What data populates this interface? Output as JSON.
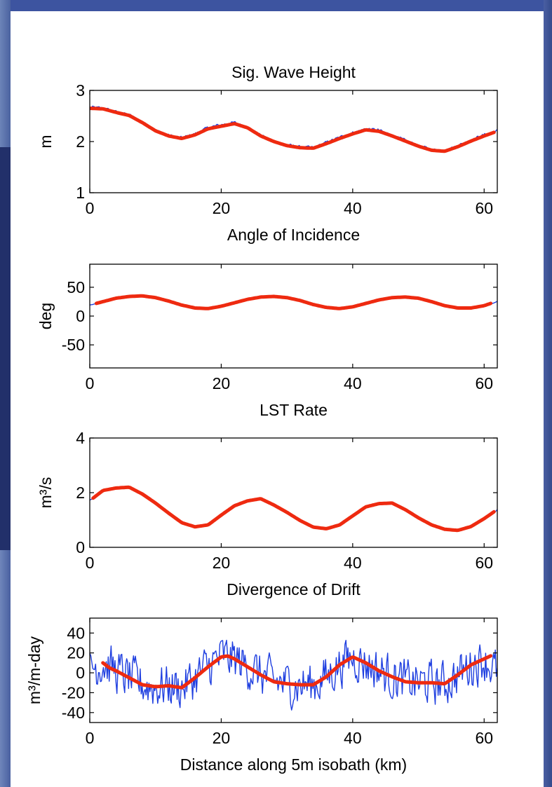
{
  "colors": {
    "raw": "#1f3fe0",
    "smoothed": "#ee2a10",
    "axis": "#000000"
  },
  "chart_data": [
    {
      "type": "line",
      "title": "Sig. Wave Height",
      "xlabel": "Angle of Incidence",
      "ylabel": "m",
      "xlim": [
        0,
        62
      ],
      "ylim": [
        1,
        3
      ],
      "xticks": [
        0,
        20,
        40,
        60
      ],
      "yticks": [
        1,
        2,
        3
      ],
      "ytick_labels": [
        "1",
        "2",
        "3"
      ],
      "series": [
        {
          "role": "raw",
          "color": "#1f3fe0",
          "noise": 0.03,
          "x": [
            0,
            2,
            4,
            6,
            8,
            10,
            12,
            14,
            16,
            18,
            20,
            22,
            24,
            26,
            28,
            30,
            32,
            34,
            36,
            38,
            40,
            42,
            44,
            46,
            48,
            50,
            52,
            54,
            56,
            58,
            60,
            62
          ],
          "y": [
            2.67,
            2.65,
            2.58,
            2.52,
            2.38,
            2.22,
            2.12,
            2.07,
            2.15,
            2.27,
            2.33,
            2.37,
            2.28,
            2.12,
            2.01,
            1.93,
            1.89,
            1.88,
            1.98,
            2.08,
            2.17,
            2.25,
            2.22,
            2.12,
            2.02,
            1.92,
            1.84,
            1.82,
            1.92,
            2.03,
            2.13,
            2.21
          ]
        },
        {
          "role": "smoothed",
          "color": "#ee2a10",
          "x": [
            0,
            2,
            4,
            6,
            8,
            10,
            12,
            14,
            16,
            18,
            20,
            22,
            24,
            26,
            28,
            30,
            32,
            34,
            36,
            38,
            40,
            42,
            44,
            46,
            48,
            50,
            52,
            54,
            56,
            58,
            60,
            61.5
          ],
          "y": [
            2.65,
            2.64,
            2.57,
            2.51,
            2.37,
            2.21,
            2.11,
            2.06,
            2.13,
            2.25,
            2.3,
            2.35,
            2.27,
            2.11,
            2.0,
            1.92,
            1.88,
            1.87,
            1.96,
            2.06,
            2.15,
            2.23,
            2.2,
            2.11,
            2.01,
            1.91,
            1.83,
            1.81,
            1.9,
            2.01,
            2.11,
            2.18
          ]
        }
      ]
    },
    {
      "type": "line",
      "title": "",
      "xlabel": "LST Rate",
      "ylabel": "deg",
      "xlim": [
        0,
        62
      ],
      "ylim": [
        -90,
        90
      ],
      "xticks": [
        0,
        20,
        40,
        60
      ],
      "yticks": [
        -50,
        0,
        50
      ],
      "ytick_labels": [
        "-50",
        "0",
        "50"
      ],
      "series": [
        {
          "role": "raw",
          "color": "#1f3fe0",
          "noise": 0.5,
          "x": [
            0,
            2,
            4,
            6,
            8,
            10,
            12,
            14,
            16,
            18,
            20,
            22,
            24,
            26,
            28,
            30,
            32,
            34,
            36,
            38,
            40,
            42,
            44,
            46,
            48,
            50,
            52,
            54,
            56,
            58,
            60,
            62
          ],
          "y": [
            19,
            25,
            31,
            34,
            35,
            32,
            26,
            19,
            14,
            13,
            17,
            23,
            29,
            33,
            34,
            32,
            27,
            20,
            15,
            13,
            16,
            22,
            28,
            32,
            33,
            31,
            25,
            18,
            14,
            14,
            18,
            25
          ]
        },
        {
          "role": "smoothed",
          "color": "#ee2a10",
          "x": [
            1,
            2,
            4,
            6,
            8,
            10,
            12,
            14,
            16,
            18,
            20,
            22,
            24,
            26,
            28,
            30,
            32,
            34,
            36,
            38,
            40,
            42,
            44,
            46,
            48,
            50,
            52,
            54,
            56,
            58,
            60,
            61
          ],
          "y": [
            22,
            25,
            31,
            34,
            35,
            32,
            26,
            19,
            14,
            13,
            17,
            23,
            29,
            33,
            34,
            32,
            27,
            20,
            15,
            13,
            16,
            22,
            28,
            32,
            33,
            31,
            25,
            18,
            14,
            14,
            18,
            22
          ]
        }
      ]
    },
    {
      "type": "line",
      "title": "",
      "xlabel": "Divergence of Drift",
      "ylabel": "m³/s",
      "xlim": [
        0,
        62
      ],
      "ylim": [
        0,
        4
      ],
      "xticks": [
        0,
        20,
        40,
        60
      ],
      "yticks": [
        0,
        2,
        4
      ],
      "ytick_labels": [
        "0",
        "2",
        "4"
      ],
      "series": [
        {
          "role": "raw",
          "color": "#1f3fe0",
          "noise": 0.02,
          "x": [
            0,
            2,
            4,
            6,
            8,
            10,
            12,
            14,
            16,
            18,
            20,
            22,
            24,
            26,
            28,
            30,
            32,
            34,
            36,
            38,
            40,
            42,
            44,
            46,
            48,
            50,
            52,
            54,
            56,
            58,
            60,
            62
          ],
          "y": [
            1.72,
            2.08,
            2.17,
            2.2,
            1.95,
            1.62,
            1.25,
            0.9,
            0.75,
            0.82,
            1.18,
            1.52,
            1.7,
            1.78,
            1.55,
            1.28,
            0.98,
            0.74,
            0.68,
            0.82,
            1.15,
            1.48,
            1.6,
            1.62,
            1.38,
            1.08,
            0.82,
            0.66,
            0.62,
            0.76,
            1.05,
            1.38
          ]
        },
        {
          "role": "smoothed",
          "color": "#ee2a10",
          "x": [
            0.5,
            2,
            4,
            6,
            8,
            10,
            12,
            14,
            16,
            18,
            20,
            22,
            24,
            26,
            28,
            30,
            32,
            34,
            36,
            38,
            40,
            42,
            44,
            46,
            48,
            50,
            52,
            54,
            56,
            58,
            60,
            61.5
          ],
          "y": [
            1.8,
            2.08,
            2.17,
            2.2,
            1.95,
            1.62,
            1.25,
            0.9,
            0.75,
            0.82,
            1.18,
            1.52,
            1.7,
            1.78,
            1.55,
            1.28,
            0.98,
            0.74,
            0.68,
            0.82,
            1.15,
            1.48,
            1.6,
            1.62,
            1.38,
            1.08,
            0.82,
            0.66,
            0.62,
            0.76,
            1.05,
            1.3
          ]
        }
      ]
    },
    {
      "type": "line",
      "title": "",
      "xlabel": "Distance along 5m isobath (km)",
      "ylabel": "m³/m-day",
      "xlim": [
        0,
        62
      ],
      "ylim": [
        -50,
        55
      ],
      "xticks": [
        0,
        20,
        40,
        60
      ],
      "yticks": [
        -40,
        -20,
        0,
        20,
        40
      ],
      "ytick_labels": [
        "-40",
        "-20",
        "0",
        "20",
        "40"
      ],
      "series": [
        {
          "role": "raw",
          "color": "#1f3fe0",
          "noise": 22,
          "x": [
            0,
            2,
            4,
            6,
            8,
            10,
            12,
            14,
            16,
            18,
            20,
            22,
            24,
            26,
            28,
            30,
            32,
            34,
            36,
            38,
            40,
            42,
            44,
            46,
            48,
            50,
            52,
            54,
            56,
            58,
            60,
            62
          ],
          "y": [
            5,
            10,
            2,
            -5,
            -12,
            -14,
            -13,
            -15,
            -5,
            6,
            16,
            14,
            6,
            -2,
            -9,
            -11,
            -12,
            -12,
            -4,
            8,
            16,
            10,
            2,
            -4,
            -9,
            -10,
            -10,
            -11,
            -2,
            8,
            14,
            0
          ]
        },
        {
          "role": "smoothed",
          "color": "#ee2a10",
          "x": [
            2,
            3,
            4,
            6,
            8,
            10,
            12,
            14,
            16,
            18,
            20,
            21,
            22,
            24,
            26,
            28,
            30,
            32,
            34,
            36,
            38,
            40,
            42,
            44,
            46,
            48,
            50,
            52,
            54,
            56,
            58,
            60,
            61
          ],
          "y": [
            10,
            5,
            2,
            -5,
            -12,
            -14,
            -13,
            -15,
            -5,
            6,
            16,
            17,
            14,
            6,
            -2,
            -9,
            -11,
            -12,
            -12,
            -4,
            8,
            16,
            10,
            2,
            -4,
            -9,
            -10,
            -10,
            -11,
            -2,
            8,
            14,
            17
          ]
        }
      ]
    }
  ]
}
